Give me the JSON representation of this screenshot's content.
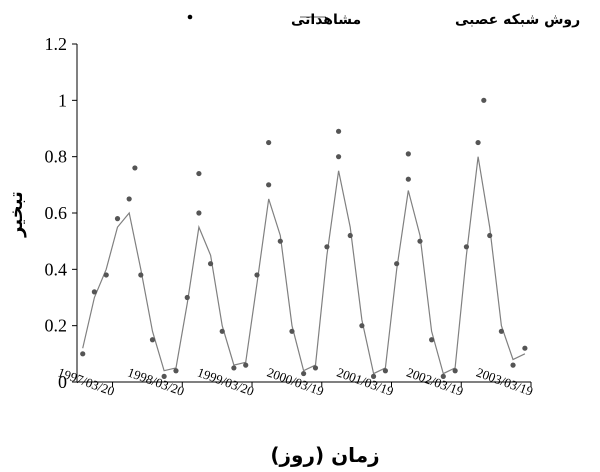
{
  "chart_data": {
    "type": "line",
    "xlabel": "زمان (روز)",
    "ylabel": "تبخیر",
    "ylim": [
      0,
      1.2
    ],
    "yticks": [
      "0",
      "0.2",
      "0.4",
      "0.6",
      "0.8",
      "1",
      "1.2"
    ],
    "xticks": [
      "1997/03/20",
      "1998/03/20",
      "1999/03/20",
      "2000/03/19",
      "2001/03/19",
      "2002/03/19",
      "2003/03/19"
    ],
    "x_range": [
      "1996/09",
      "2003/03/19"
    ],
    "grid": false,
    "legend_position": "top",
    "series": [
      {
        "name": "روش شبکه عصبی",
        "style": "line",
        "color": "#808080",
        "x": [
          "1996/10",
          "1996/12",
          "1997/02",
          "1997/04",
          "1997/06",
          "1997/08",
          "1997/10",
          "1997/12",
          "1998/02",
          "1998/04",
          "1998/06",
          "1998/08",
          "1998/10",
          "1998/12",
          "1999/02",
          "1999/04",
          "1999/06",
          "1999/08",
          "1999/10",
          "1999/12",
          "2000/02",
          "2000/04",
          "2000/06",
          "2000/08",
          "2000/10",
          "2000/12",
          "2001/02",
          "2001/04",
          "2001/06",
          "2001/08",
          "2001/10",
          "2001/12",
          "2002/02",
          "2002/04",
          "2002/06",
          "2002/08",
          "2002/10",
          "2002/12",
          "2003/02"
        ],
        "values": [
          0.12,
          0.3,
          0.4,
          0.55,
          0.6,
          0.4,
          0.18,
          0.04,
          0.05,
          0.28,
          0.55,
          0.45,
          0.2,
          0.06,
          0.07,
          0.35,
          0.65,
          0.52,
          0.2,
          0.04,
          0.06,
          0.45,
          0.75,
          0.55,
          0.22,
          0.03,
          0.05,
          0.4,
          0.68,
          0.52,
          0.18,
          0.03,
          0.05,
          0.45,
          0.8,
          0.55,
          0.2,
          0.08,
          0.1
        ]
      },
      {
        "name": "مشاهداتی",
        "style": "markers",
        "color": "#555555",
        "x": [
          "1996/10",
          "1996/12",
          "1997/02",
          "1997/04",
          "1997/06",
          "1997/08",
          "1997/10",
          "1997/12",
          "1998/02",
          "1998/04",
          "1998/06",
          "1998/08",
          "1998/10",
          "1998/12",
          "1999/02",
          "1999/04",
          "1999/06",
          "1999/08",
          "1999/10",
          "1999/12",
          "2000/02",
          "2000/04",
          "2000/06",
          "2000/08",
          "2000/10",
          "2000/12",
          "2001/02",
          "2001/04",
          "2001/06",
          "2001/08",
          "2001/10",
          "2001/12",
          "2002/02",
          "2002/04",
          "2002/06",
          "2002/08",
          "2002/10",
          "2002/12",
          "2003/02"
        ],
        "values": [
          0.1,
          0.32,
          0.38,
          0.58,
          0.65,
          0.38,
          0.15,
          0.02,
          0.04,
          0.3,
          0.6,
          0.42,
          0.18,
          0.05,
          0.06,
          0.38,
          0.7,
          0.5,
          0.18,
          0.03,
          0.05,
          0.48,
          0.8,
          0.52,
          0.2,
          0.02,
          0.04,
          0.42,
          0.72,
          0.5,
          0.15,
          0.02,
          0.04,
          0.48,
          0.85,
          0.52,
          0.18,
          0.06,
          0.12
        ]
      }
    ],
    "extremes": [
      {
        "x": "1997/07",
        "value": 0.76
      },
      {
        "x": "1998/06",
        "value": 0.74
      },
      {
        "x": "1999/06",
        "value": 0.85
      },
      {
        "x": "2000/06",
        "value": 0.89
      },
      {
        "x": "2001/06",
        "value": 0.81
      },
      {
        "x": "2002/07",
        "value": 1.0
      }
    ]
  }
}
